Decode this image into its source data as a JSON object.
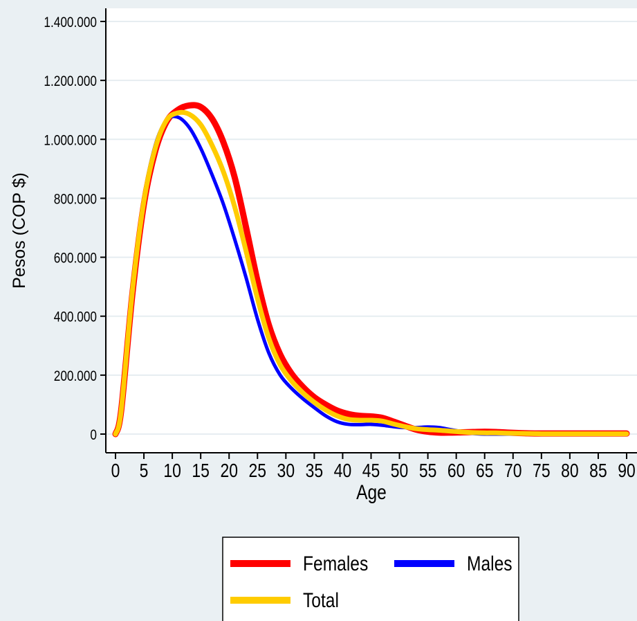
{
  "chart_data": {
    "type": "line",
    "xlabel": "Age",
    "ylabel": "Pesos (COP $)",
    "xlim": [
      0,
      90
    ],
    "ylim": [
      0,
      1400000
    ],
    "xticks": [
      0,
      5,
      10,
      15,
      20,
      25,
      30,
      35,
      40,
      45,
      50,
      55,
      60,
      65,
      70,
      75,
      80,
      85,
      90
    ],
    "yticks": [
      0,
      200000,
      400000,
      600000,
      800000,
      1000000,
      1200000,
      1400000
    ],
    "ytick_labels": [
      "0",
      "200.000",
      "400.000",
      "600.000",
      "800.000",
      "1.000.000",
      "1.200.000",
      "1.400.000"
    ],
    "grid": true,
    "legend_position": "bottom",
    "x": [
      0,
      1,
      3,
      5,
      7,
      9,
      11,
      13,
      15,
      17,
      19,
      21,
      23,
      25,
      27,
      29,
      31,
      33,
      35,
      37,
      39,
      41,
      43,
      45,
      47,
      49,
      51,
      53,
      55,
      57,
      59,
      61,
      63,
      65,
      67,
      69,
      72,
      75,
      80,
      85,
      90
    ],
    "series": [
      {
        "name": "Females",
        "color": "#ff0000",
        "values": [
          0,
          80000,
          480000,
          780000,
          960000,
          1060000,
          1100000,
          1115000,
          1110000,
          1070000,
          990000,
          870000,
          700000,
          520000,
          370000,
          270000,
          205000,
          160000,
          125000,
          100000,
          80000,
          68000,
          62000,
          60000,
          55000,
          42000,
          28000,
          15000,
          8000,
          5000,
          5000,
          6000,
          7000,
          8000,
          7000,
          5000,
          3000,
          2000,
          2000,
          2000,
          2000
        ]
      },
      {
        "name": "Males",
        "color": "#0000ff",
        "values": [
          0,
          80000,
          500000,
          800000,
          980000,
          1065000,
          1075000,
          1040000,
          970000,
          880000,
          780000,
          660000,
          530000,
          390000,
          275000,
          200000,
          155000,
          120000,
          90000,
          62000,
          42000,
          33000,
          32000,
          33000,
          30000,
          25000,
          22000,
          22000,
          24000,
          22000,
          15000,
          8000,
          2000,
          0,
          0,
          0,
          0,
          0,
          0,
          0,
          0
        ]
      },
      {
        "name": "Total",
        "color": "#ffcc00",
        "values": [
          0,
          80000,
          490000,
          790000,
          970000,
          1065000,
          1090000,
          1085000,
          1050000,
          980000,
          890000,
          770000,
          620000,
          460000,
          325000,
          235000,
          180000,
          140000,
          108000,
          82000,
          62000,
          50000,
          47000,
          47000,
          44000,
          34000,
          25000,
          18000,
          15000,
          13000,
          10000,
          7000,
          5000,
          4000,
          4000,
          3000,
          2000,
          1000,
          1000,
          1000,
          1000
        ]
      }
    ]
  }
}
